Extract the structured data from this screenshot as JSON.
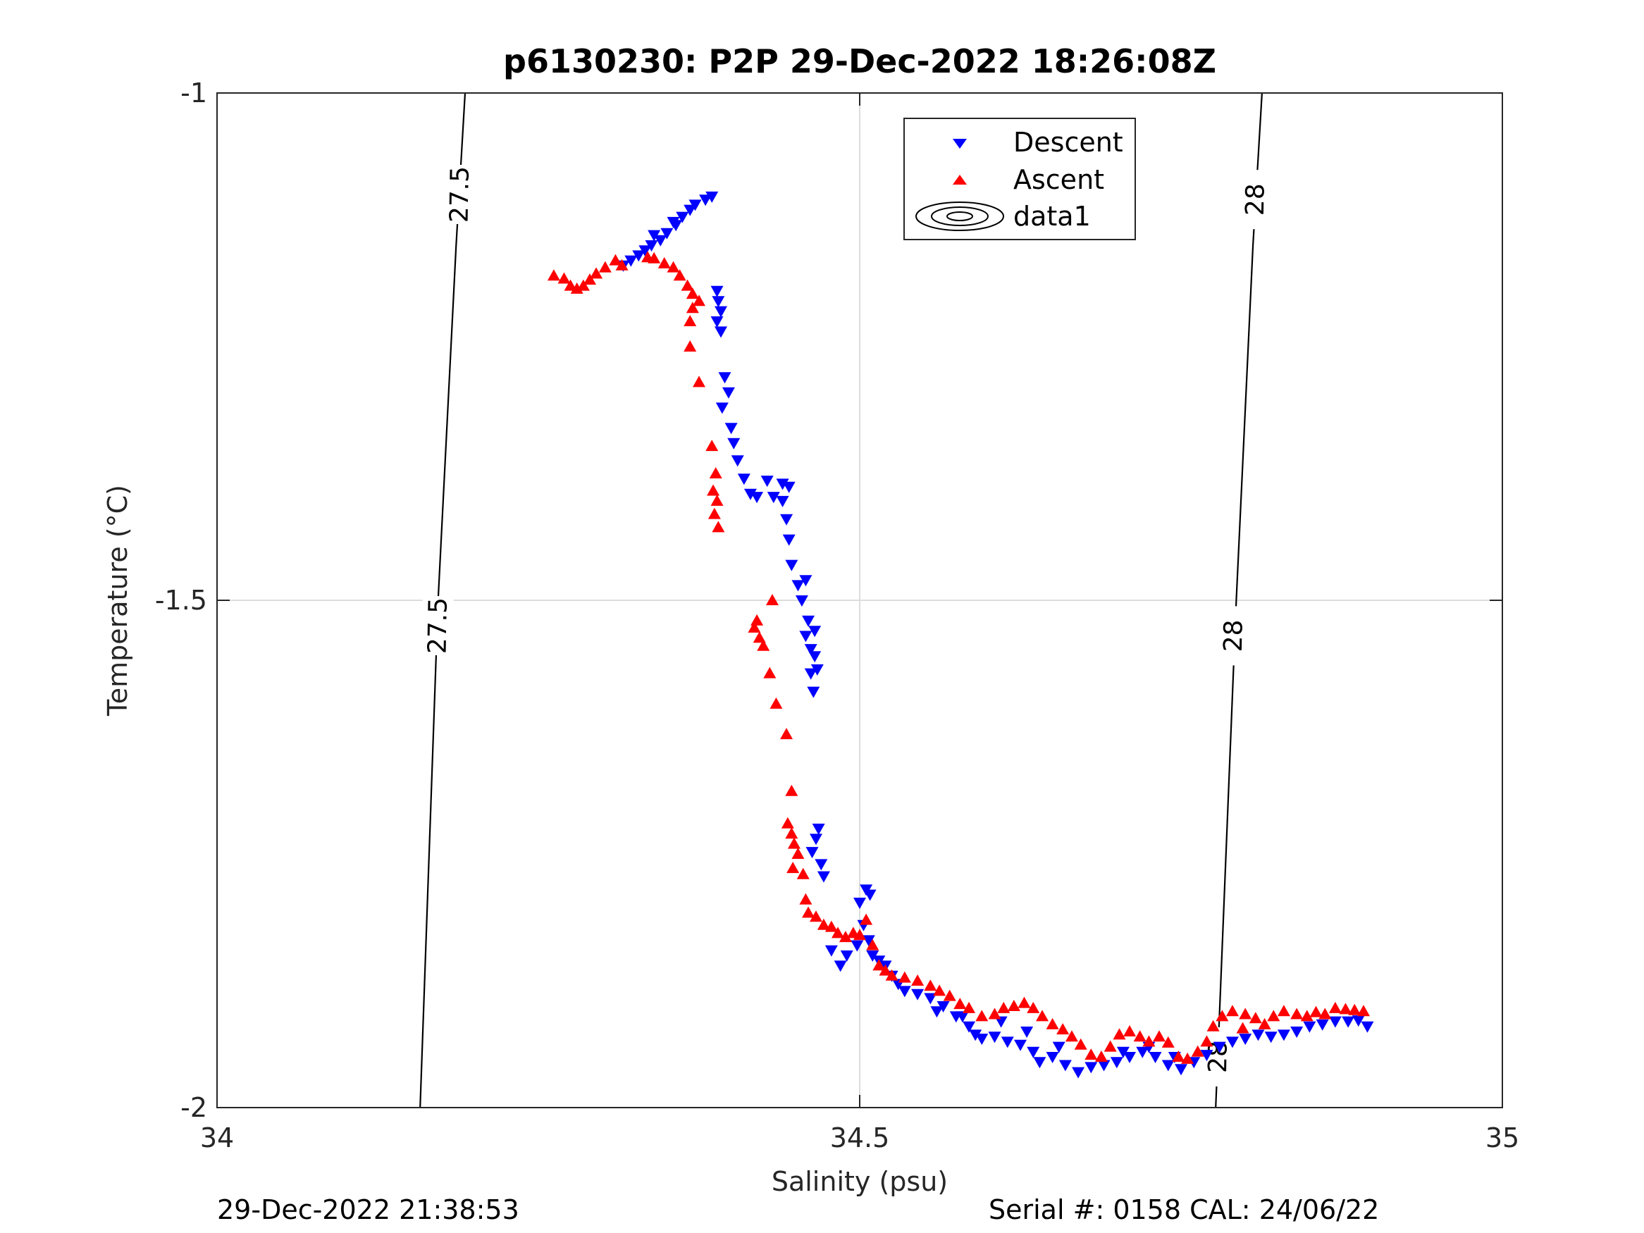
{
  "chart_data": {
    "type": "scatter",
    "title": "p6130230: P2P 29-Dec-2022 18:26:08Z",
    "xlabel": "Salinity (psu)",
    "ylabel": "Temperature (°C)",
    "xlim": [
      34,
      35
    ],
    "ylim": [
      -2,
      -1
    ],
    "x_ticks": [
      34,
      34.5,
      35
    ],
    "x_tick_labels": [
      "34",
      "34.5",
      "35"
    ],
    "y_ticks": [
      -2,
      -1.5,
      -1
    ],
    "y_tick_labels": [
      "-2",
      "-1.5",
      "-1"
    ],
    "grid": true,
    "legend_position": "top-right",
    "legend": [
      "Descent",
      "Ascent",
      "data1"
    ],
    "colors": {
      "descent": "#0000ff",
      "ascent": "#ff0000",
      "contour": "#000000",
      "grid": "#dcdcdc",
      "axis": "#262626"
    },
    "contours": [
      {
        "level": "27.5",
        "points": [
          [
            34.193,
            -1.0
          ],
          [
            34.186,
            -1.15
          ],
          [
            34.172,
            -1.5
          ],
          [
            34.158,
            -2.0
          ]
        ],
        "label_positions": [
          [
            34.189,
            -1.1
          ],
          [
            34.172,
            -1.525
          ]
        ]
      },
      {
        "level": "28",
        "points": [
          [
            34.813,
            -1.0
          ],
          [
            34.806,
            -1.15
          ],
          [
            34.793,
            -1.5
          ],
          [
            34.777,
            -2.0
          ]
        ],
        "label_positions": [
          [
            34.808,
            -1.105
          ],
          [
            34.791,
            -1.535
          ],
          [
            34.779,
            -1.95
          ]
        ]
      }
    ],
    "series": [
      {
        "name": "Descent",
        "marker": "triangle-down",
        "points": [
          [
            34.385,
            -1.102
          ],
          [
            34.38,
            -1.105
          ],
          [
            34.372,
            -1.11
          ],
          [
            34.368,
            -1.115
          ],
          [
            34.362,
            -1.122
          ],
          [
            34.357,
            -1.13
          ],
          [
            34.35,
            -1.138
          ],
          [
            34.345,
            -1.145
          ],
          [
            34.338,
            -1.15
          ],
          [
            34.333,
            -1.155
          ],
          [
            34.328,
            -1.16
          ],
          [
            34.322,
            -1.165
          ],
          [
            34.316,
            -1.17
          ],
          [
            34.34,
            -1.14
          ],
          [
            34.355,
            -1.127
          ],
          [
            34.389,
            -1.195
          ],
          [
            34.39,
            -1.205
          ],
          [
            34.392,
            -1.215
          ],
          [
            34.389,
            -1.225
          ],
          [
            34.392,
            -1.235
          ],
          [
            34.395,
            -1.28
          ],
          [
            34.398,
            -1.295
          ],
          [
            34.393,
            -1.31
          ],
          [
            34.4,
            -1.33
          ],
          [
            34.402,
            -1.345
          ],
          [
            34.405,
            -1.362
          ],
          [
            34.41,
            -1.38
          ],
          [
            34.415,
            -1.395
          ],
          [
            34.42,
            -1.398
          ],
          [
            34.428,
            -1.382
          ],
          [
            34.433,
            -1.398
          ],
          [
            34.44,
            -1.385
          ],
          [
            34.445,
            -1.388
          ],
          [
            34.44,
            -1.402
          ],
          [
            34.443,
            -1.42
          ],
          [
            34.445,
            -1.44
          ],
          [
            34.447,
            -1.465
          ],
          [
            34.452,
            -1.485
          ],
          [
            34.458,
            -1.48
          ],
          [
            34.455,
            -1.5
          ],
          [
            34.46,
            -1.52
          ],
          [
            34.465,
            -1.53
          ],
          [
            34.458,
            -1.535
          ],
          [
            34.462,
            -1.548
          ],
          [
            34.465,
            -1.555
          ],
          [
            34.467,
            -1.568
          ],
          [
            34.462,
            -1.572
          ],
          [
            34.464,
            -1.59
          ],
          [
            34.468,
            -1.725
          ],
          [
            34.466,
            -1.735
          ],
          [
            34.463,
            -1.748
          ],
          [
            34.47,
            -1.76
          ],
          [
            34.472,
            -1.772
          ],
          [
            34.505,
            -1.785
          ],
          [
            34.508,
            -1.79
          ],
          [
            34.5,
            -1.798
          ],
          [
            34.503,
            -1.82
          ],
          [
            34.507,
            -1.835
          ],
          [
            34.498,
            -1.84
          ],
          [
            34.49,
            -1.85
          ],
          [
            34.485,
            -1.86
          ],
          [
            34.478,
            -1.845
          ],
          [
            34.51,
            -1.85
          ],
          [
            34.515,
            -1.855
          ],
          [
            34.52,
            -1.86
          ],
          [
            34.525,
            -1.87
          ],
          [
            34.53,
            -1.878
          ],
          [
            34.535,
            -1.885
          ],
          [
            34.545,
            -1.888
          ],
          [
            34.555,
            -1.892
          ],
          [
            34.565,
            -1.9
          ],
          [
            34.575,
            -1.91
          ],
          [
            34.585,
            -1.92
          ],
          [
            34.59,
            -1.928
          ],
          [
            34.595,
            -1.932
          ],
          [
            34.605,
            -1.93
          ],
          [
            34.615,
            -1.935
          ],
          [
            34.625,
            -1.938
          ],
          [
            34.635,
            -1.945
          ],
          [
            34.64,
            -1.955
          ],
          [
            34.65,
            -1.95
          ],
          [
            34.66,
            -1.958
          ],
          [
            34.67,
            -1.965
          ],
          [
            34.68,
            -1.96
          ],
          [
            34.69,
            -1.958
          ],
          [
            34.7,
            -1.955
          ],
          [
            34.71,
            -1.95
          ],
          [
            34.72,
            -1.945
          ],
          [
            34.73,
            -1.95
          ],
          [
            34.74,
            -1.958
          ],
          [
            34.75,
            -1.962
          ],
          [
            34.76,
            -1.955
          ],
          [
            34.77,
            -1.948
          ],
          [
            34.78,
            -1.94
          ],
          [
            34.79,
            -1.935
          ],
          [
            34.8,
            -1.932
          ],
          [
            34.81,
            -1.928
          ],
          [
            34.82,
            -1.93
          ],
          [
            34.83,
            -1.928
          ],
          [
            34.84,
            -1.925
          ],
          [
            34.85,
            -1.92
          ],
          [
            34.86,
            -1.918
          ],
          [
            34.87,
            -1.915
          ],
          [
            34.88,
            -1.915
          ],
          [
            34.888,
            -1.914
          ],
          [
            34.895,
            -1.92
          ],
          [
            34.745,
            -1.95
          ],
          [
            34.725,
            -1.94
          ],
          [
            34.705,
            -1.945
          ],
          [
            34.655,
            -1.94
          ],
          [
            34.63,
            -1.925
          ],
          [
            34.61,
            -1.915
          ],
          [
            34.58,
            -1.91
          ],
          [
            34.56,
            -1.905
          ]
        ]
      },
      {
        "name": "Ascent",
        "marker": "triangle-up",
        "points": [
          [
            34.31,
            -1.165
          ],
          [
            34.315,
            -1.17
          ],
          [
            34.302,
            -1.172
          ],
          [
            34.295,
            -1.178
          ],
          [
            34.29,
            -1.184
          ],
          [
            34.285,
            -1.19
          ],
          [
            34.28,
            -1.193
          ],
          [
            34.275,
            -1.19
          ],
          [
            34.27,
            -1.183
          ],
          [
            34.262,
            -1.18
          ],
          [
            34.335,
            -1.162
          ],
          [
            34.34,
            -1.163
          ],
          [
            34.348,
            -1.168
          ],
          [
            34.355,
            -1.172
          ],
          [
            34.36,
            -1.18
          ],
          [
            34.366,
            -1.19
          ],
          [
            34.37,
            -1.198
          ],
          [
            34.375,
            -1.205
          ],
          [
            34.37,
            -1.212
          ],
          [
            34.368,
            -1.225
          ],
          [
            34.368,
            -1.25
          ],
          [
            34.375,
            -1.285
          ],
          [
            34.385,
            -1.348
          ],
          [
            34.388,
            -1.375
          ],
          [
            34.386,
            -1.392
          ],
          [
            34.389,
            -1.402
          ],
          [
            34.387,
            -1.415
          ],
          [
            34.39,
            -1.428
          ],
          [
            34.42,
            -1.52
          ],
          [
            34.418,
            -1.527
          ],
          [
            34.422,
            -1.537
          ],
          [
            34.425,
            -1.545
          ],
          [
            34.43,
            -1.572
          ],
          [
            34.432,
            -1.5
          ],
          [
            34.435,
            -1.602
          ],
          [
            34.443,
            -1.632
          ],
          [
            34.447,
            -1.688
          ],
          [
            34.444,
            -1.72
          ],
          [
            34.447,
            -1.73
          ],
          [
            34.449,
            -1.74
          ],
          [
            34.452,
            -1.75
          ],
          [
            34.448,
            -1.764
          ],
          [
            34.456,
            -1.77
          ],
          [
            34.458,
            -1.795
          ],
          [
            34.46,
            -1.808
          ],
          [
            34.466,
            -1.812
          ],
          [
            34.472,
            -1.82
          ],
          [
            34.478,
            -1.822
          ],
          [
            34.483,
            -1.828
          ],
          [
            34.489,
            -1.832
          ],
          [
            34.495,
            -1.828
          ],
          [
            34.5,
            -1.83
          ],
          [
            34.505,
            -1.815
          ],
          [
            34.51,
            -1.84
          ],
          [
            34.515,
            -1.86
          ],
          [
            34.52,
            -1.865
          ],
          [
            34.525,
            -1.87
          ],
          [
            34.535,
            -1.872
          ],
          [
            34.545,
            -1.875
          ],
          [
            34.555,
            -1.88
          ],
          [
            34.562,
            -1.885
          ],
          [
            34.57,
            -1.89
          ],
          [
            34.578,
            -1.898
          ],
          [
            34.585,
            -1.902
          ],
          [
            34.595,
            -1.91
          ],
          [
            34.605,
            -1.908
          ],
          [
            34.612,
            -1.902
          ],
          [
            34.62,
            -1.9
          ],
          [
            34.628,
            -1.897
          ],
          [
            34.635,
            -1.902
          ],
          [
            34.642,
            -1.91
          ],
          [
            34.65,
            -1.918
          ],
          [
            34.658,
            -1.923
          ],
          [
            34.665,
            -1.93
          ],
          [
            34.672,
            -1.938
          ],
          [
            34.68,
            -1.948
          ],
          [
            34.688,
            -1.95
          ],
          [
            34.695,
            -1.94
          ],
          [
            34.702,
            -1.928
          ],
          [
            34.71,
            -1.925
          ],
          [
            34.718,
            -1.93
          ],
          [
            34.725,
            -1.935
          ],
          [
            34.733,
            -1.93
          ],
          [
            34.74,
            -1.936
          ],
          [
            34.748,
            -1.95
          ],
          [
            34.755,
            -1.952
          ],
          [
            34.763,
            -1.945
          ],
          [
            34.77,
            -1.935
          ],
          [
            34.775,
            -1.92
          ],
          [
            34.782,
            -1.91
          ],
          [
            34.79,
            -1.905
          ],
          [
            34.8,
            -1.908
          ],
          [
            34.808,
            -1.912
          ],
          [
            34.815,
            -1.918
          ],
          [
            34.822,
            -1.91
          ],
          [
            34.83,
            -1.905
          ],
          [
            34.84,
            -1.908
          ],
          [
            34.848,
            -1.91
          ],
          [
            34.855,
            -1.906
          ],
          [
            34.862,
            -1.908
          ],
          [
            34.87,
            -1.902
          ],
          [
            34.878,
            -1.903
          ],
          [
            34.885,
            -1.904
          ],
          [
            34.892,
            -1.905
          ],
          [
            34.798,
            -1.922
          ]
        ]
      }
    ]
  },
  "footer": {
    "left": "29-Dec-2022 21:38:53",
    "right": "Serial #: 0158  CAL: 24/06/22"
  }
}
